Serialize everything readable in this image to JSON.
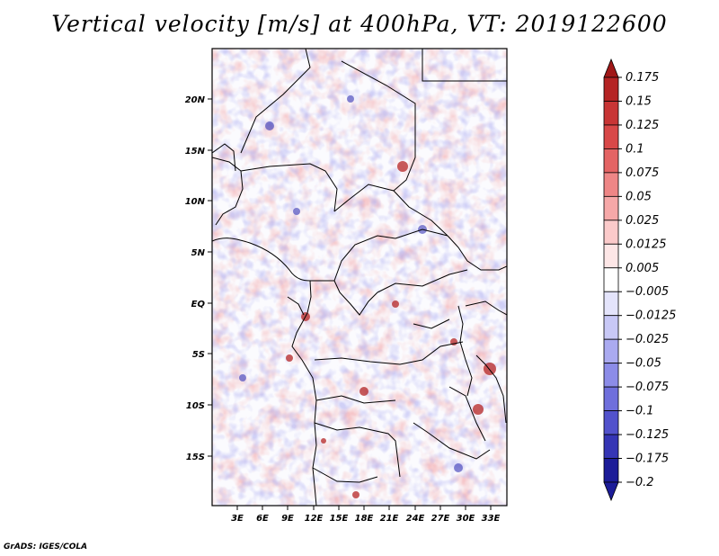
{
  "title": "Vertical velocity [m/s] at 400hPa, VT: 2019122600",
  "credit": "GrADS: IGES/COLA",
  "map": {
    "lat_labels": [
      "20N",
      "15N",
      "10N",
      "5N",
      "EQ",
      "5S",
      "10S",
      "15S"
    ],
    "lon_labels": [
      "3E",
      "6E",
      "9E",
      "12E",
      "15E",
      "18E",
      "21E",
      "24E",
      "27E",
      "30E",
      "33E"
    ]
  },
  "colorbar": {
    "labels": [
      "0.175",
      "0.15",
      "0.125",
      "0.1",
      "0.075",
      "0.05",
      "0.025",
      "0.0125",
      "0.005",
      "-0.005",
      "-0.0125",
      "-0.025",
      "-0.05",
      "-0.075",
      "-0.1",
      "-0.125",
      "-0.175",
      "-0.2"
    ],
    "colors": [
      "#a01818",
      "#b52424",
      "#c83535",
      "#d84848",
      "#e46464",
      "#ee8686",
      "#f6a8a8",
      "#fbcaca",
      "#fde6e6",
      "#ffffff",
      "#e4e4fb",
      "#c8c8f6",
      "#aaaaf0",
      "#8c8ce8",
      "#6f6fdc",
      "#5252cc",
      "#3535b5",
      "#1c1c98"
    ]
  }
}
